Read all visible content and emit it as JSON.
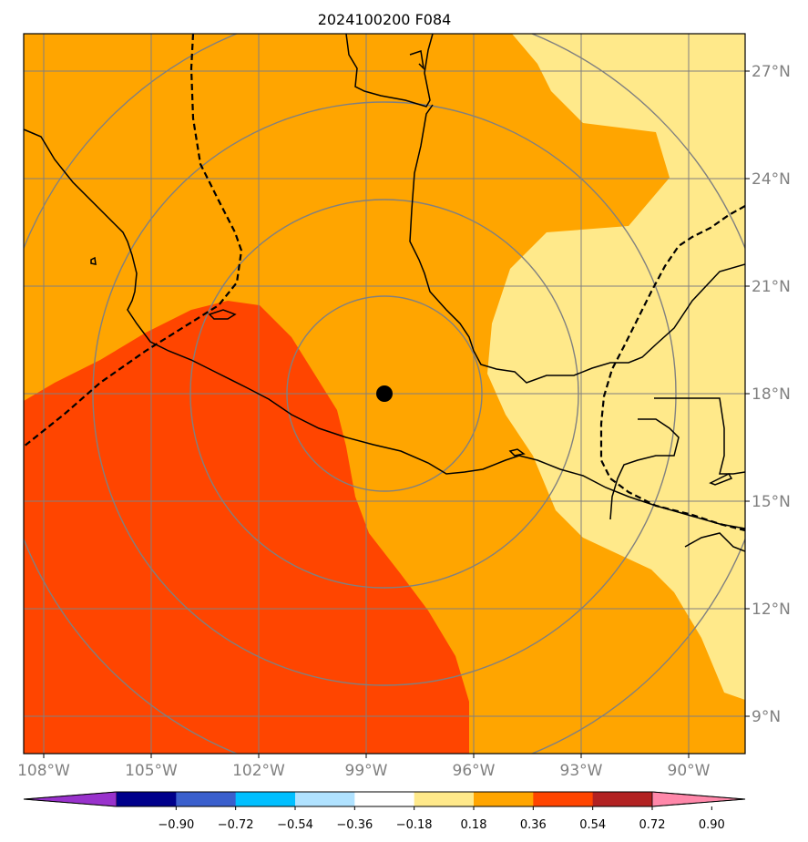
{
  "title": "2024100200 F084",
  "map": {
    "lon_range": [
      -109,
      -88
    ],
    "lat_range": [
      8,
      28
    ],
    "center_marker": {
      "lon": -98.5,
      "lat": 18.0
    },
    "lat_ticks": [
      {
        "value": 9,
        "label": "9°N"
      },
      {
        "value": 12,
        "label": "12°N"
      },
      {
        "value": 15,
        "label": "15°N"
      },
      {
        "value": 18,
        "label": "18°N"
      },
      {
        "value": 21,
        "label": "21°N"
      },
      {
        "value": 24,
        "label": "24°N"
      },
      {
        "value": 27,
        "label": "27°N"
      }
    ],
    "lon_ticks": [
      {
        "value": -108,
        "label": "108°W"
      },
      {
        "value": -105,
        "label": "105°W"
      },
      {
        "value": -102,
        "label": "102°W"
      },
      {
        "value": -99,
        "label": "99°W"
      },
      {
        "value": -96,
        "label": "96°W"
      },
      {
        "value": -93,
        "label": "93°W"
      },
      {
        "value": -90,
        "label": "90°W"
      }
    ],
    "fill_colors": {
      "band_018_036": "#ffe98a",
      "band_036_054": "#ffa500",
      "band_054_072": "#ff4500"
    },
    "line_colors": {
      "grid": "#808080",
      "coast": "#000000"
    }
  },
  "colorbar": {
    "colors": [
      "#9932cc",
      "#00008b",
      "#3a5fcd",
      "#00bfff",
      "#b0e2ff",
      "#ffffff",
      "#ffe98a",
      "#ffa500",
      "#ff4500",
      "#b22222",
      "#ff88aa"
    ],
    "ticks": [
      "−0.90",
      "−0.72",
      "−0.54",
      "−0.36",
      "−0.18",
      "0.18",
      "0.36",
      "0.54",
      "0.72",
      "0.90"
    ]
  }
}
